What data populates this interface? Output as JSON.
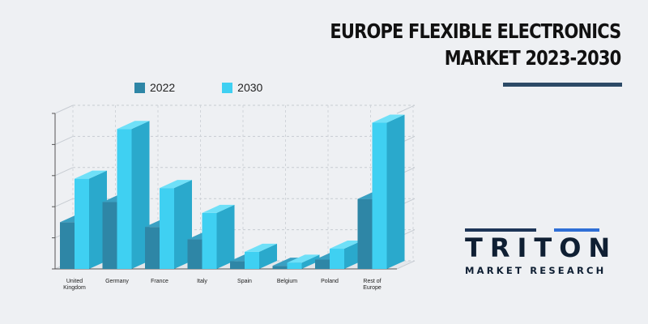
{
  "title": {
    "line1": "EUROPE FLEXIBLE ELECTRONICS",
    "line2": "MARKET 2023-2030"
  },
  "logo": {
    "name": "TRITON",
    "subtitle": "MARKET RESEARCH"
  },
  "colors": {
    "series_2022_front": "#2e86a6",
    "series_2030_front": "#3fd0f2",
    "title_bar": "#2c4a66",
    "logo_dark": "#1d3557",
    "logo_blue": "#2f6fd6"
  },
  "chart_data": {
    "type": "bar",
    "style": "3d",
    "categories": [
      "United Kingdom",
      "Germany",
      "France",
      "Italy",
      "Spain",
      "Belgium",
      "Poland",
      "Rest of Europe"
    ],
    "category_labels": [
      [
        "United",
        "Kingdom"
      ],
      [
        "Germany"
      ],
      [
        "France"
      ],
      [
        "Italy"
      ],
      [
        "Spain"
      ],
      [
        "Belgium"
      ],
      [
        "Poland"
      ],
      [
        "Rest of",
        "Europe"
      ]
    ],
    "series": [
      {
        "name": "2022",
        "values": [
          30,
          43,
          27,
          19,
          5,
          2,
          6,
          45
        ]
      },
      {
        "name": "2030",
        "values": [
          58,
          90,
          52,
          36,
          11,
          4,
          13,
          94
        ]
      }
    ],
    "ylim": [
      0,
      100
    ],
    "yticks": [
      0,
      20,
      40,
      60,
      80,
      100
    ],
    "grid": true,
    "legend": "top-left",
    "xlabel": "",
    "ylabel": ""
  }
}
